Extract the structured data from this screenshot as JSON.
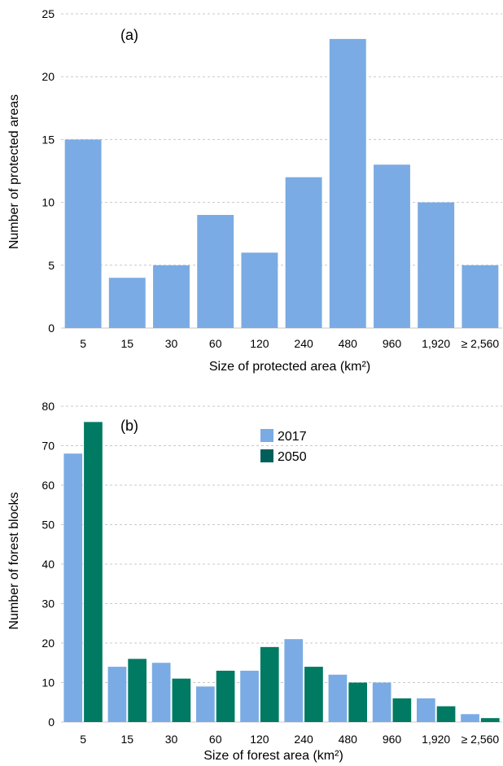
{
  "chart_data": [
    {
      "type": "bar",
      "panel_label": "(a)",
      "categories": [
        "5",
        "15",
        "30",
        "60",
        "120",
        "240",
        "480",
        "960",
        "1,920",
        "≥ 2,560"
      ],
      "series": [
        {
          "values": [
            15,
            4,
            5,
            9,
            6,
            12,
            23,
            13,
            10,
            5
          ],
          "color": "#7aabe4"
        }
      ],
      "xlabel": "Size of protected area (km²)",
      "ylabel": "Number of protected areas",
      "ylim": [
        0,
        25
      ],
      "yticks": [
        0,
        5,
        10,
        15,
        20,
        25
      ],
      "grid": true,
      "legend": "none"
    },
    {
      "type": "bar",
      "panel_label": "(b)",
      "categories": [
        "5",
        "15",
        "30",
        "60",
        "120",
        "240",
        "480",
        "960",
        "1,920",
        "≥ 2,560"
      ],
      "series": [
        {
          "name": "2017",
          "values": [
            68,
            14,
            15,
            9,
            13,
            21,
            12,
            10,
            6,
            2
          ],
          "color": "#7aabe4"
        },
        {
          "name": "2050",
          "values": [
            76,
            16,
            11,
            13,
            19,
            14,
            10,
            6,
            4,
            1
          ],
          "color": "#007a62"
        }
      ],
      "xlabel": "Size of forest area (km²)",
      "ylabel": "Number of forest blocks",
      "ylim": [
        0,
        80
      ],
      "yticks": [
        0,
        10,
        20,
        30,
        40,
        50,
        60,
        70,
        80
      ],
      "grid": true,
      "legend": "top-center",
      "legend_swatch_colors": [
        "#7aabe4",
        "#005f5a"
      ]
    }
  ]
}
